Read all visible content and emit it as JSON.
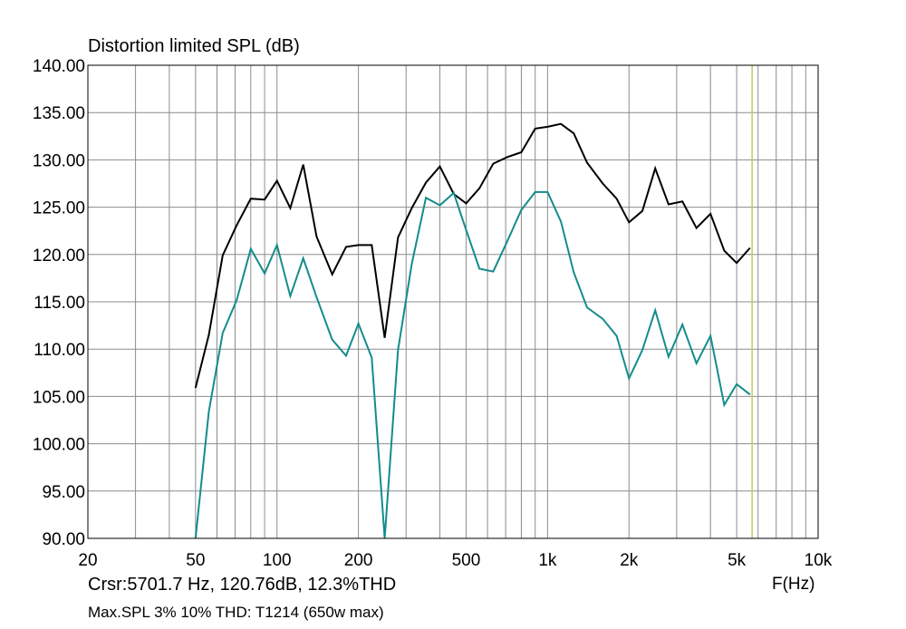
{
  "chart_data": {
    "type": "line",
    "title": "Distortion limited SPL (dB)",
    "xlabel": "F(Hz)",
    "ylabel": "",
    "xscale": "log",
    "xlim": [
      20,
      10000
    ],
    "ylim": [
      90,
      140
    ],
    "grid": true,
    "x_tick_labels": [
      {
        "value": 20,
        "label": "20"
      },
      {
        "value": 50,
        "label": "50"
      },
      {
        "value": 100,
        "label": "100"
      },
      {
        "value": 200,
        "label": "200"
      },
      {
        "value": 500,
        "label": "500"
      },
      {
        "value": 1000,
        "label": "1k"
      },
      {
        "value": 2000,
        "label": "2k"
      },
      {
        "value": 5000,
        "label": "5k"
      },
      {
        "value": 10000,
        "label": "10k"
      }
    ],
    "y_tick_labels": [
      "90.00",
      "95.00",
      "100.00",
      "105.00",
      "110.00",
      "115.00",
      "120.00",
      "125.00",
      "130.00",
      "135.00",
      "140.00"
    ],
    "cursor": {
      "x": 5701.7,
      "color": "#c8c864"
    },
    "series": [
      {
        "color": "#000000",
        "points": [
          [
            50,
            105.9
          ],
          [
            56,
            111.5
          ],
          [
            63,
            119.9
          ],
          [
            71,
            123.1
          ],
          [
            80,
            125.9
          ],
          [
            90,
            125.8
          ],
          [
            100,
            127.8
          ],
          [
            112,
            124.9
          ],
          [
            125,
            129.5
          ],
          [
            140,
            121.9
          ],
          [
            160,
            117.9
          ],
          [
            180,
            120.8
          ],
          [
            200,
            121.0
          ],
          [
            224,
            121.0
          ],
          [
            250,
            111.2
          ],
          [
            280,
            121.8
          ],
          [
            315,
            124.9
          ],
          [
            355,
            127.6
          ],
          [
            400,
            129.3
          ],
          [
            450,
            126.4
          ],
          [
            500,
            125.4
          ],
          [
            560,
            127.0
          ],
          [
            630,
            129.6
          ],
          [
            710,
            130.3
          ],
          [
            800,
            130.8
          ],
          [
            900,
            133.3
          ],
          [
            1000,
            133.5
          ],
          [
            1120,
            133.8
          ],
          [
            1250,
            132.8
          ],
          [
            1400,
            129.7
          ],
          [
            1600,
            127.5
          ],
          [
            1800,
            125.9
          ],
          [
            2000,
            123.4
          ],
          [
            2240,
            124.6
          ],
          [
            2500,
            129.1
          ],
          [
            2800,
            125.3
          ],
          [
            3150,
            125.6
          ],
          [
            3550,
            122.8
          ],
          [
            4000,
            124.3
          ],
          [
            4500,
            120.4
          ],
          [
            5000,
            119.1
          ],
          [
            5600,
            120.7
          ]
        ]
      },
      {
        "color": "#148c8c",
        "points": [
          [
            50,
            90.0
          ],
          [
            56,
            103.4
          ],
          [
            63,
            111.7
          ],
          [
            71,
            115.2
          ],
          [
            80,
            120.6
          ],
          [
            90,
            118.0
          ],
          [
            100,
            121.0
          ],
          [
            112,
            115.6
          ],
          [
            125,
            119.6
          ],
          [
            140,
            115.5
          ],
          [
            160,
            111.0
          ],
          [
            180,
            109.3
          ],
          [
            200,
            112.7
          ],
          [
            224,
            109.1
          ],
          [
            250,
            90.0
          ],
          [
            280,
            109.9
          ],
          [
            315,
            119.0
          ],
          [
            355,
            126.0
          ],
          [
            400,
            125.2
          ],
          [
            450,
            126.5
          ],
          [
            500,
            122.6
          ],
          [
            560,
            118.5
          ],
          [
            630,
            118.2
          ],
          [
            710,
            121.4
          ],
          [
            800,
            124.7
          ],
          [
            900,
            126.6
          ],
          [
            1000,
            126.6
          ],
          [
            1120,
            123.5
          ],
          [
            1250,
            118.1
          ],
          [
            1400,
            114.4
          ],
          [
            1600,
            113.2
          ],
          [
            1800,
            111.4
          ],
          [
            2000,
            106.9
          ],
          [
            2240,
            109.9
          ],
          [
            2500,
            114.1
          ],
          [
            2800,
            109.2
          ],
          [
            3150,
            112.6
          ],
          [
            3550,
            108.5
          ],
          [
            4000,
            111.4
          ],
          [
            4500,
            104.1
          ],
          [
            5000,
            106.3
          ],
          [
            5600,
            105.2
          ]
        ]
      }
    ]
  },
  "readout": {
    "cursor_text": "Crsr:5701.7 Hz, 120.76dB, 12.3%THD",
    "subtitle": "Max.SPL 3% 10% THD: T1214 (650w max)"
  }
}
